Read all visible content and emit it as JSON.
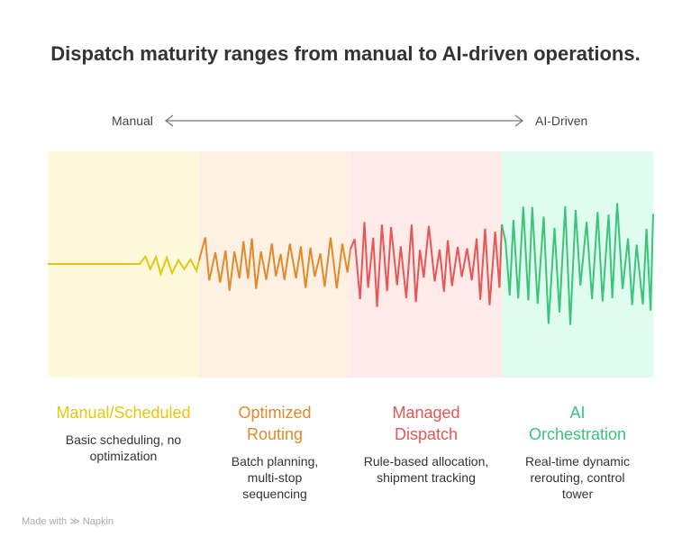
{
  "title": "Dispatch maturity ranges from manual to AI-driven operations.",
  "axis": {
    "left": "Manual",
    "right": "AI-Driven"
  },
  "stages": [
    {
      "title": "Manual/Scheduled",
      "description": "Basic scheduling, no optimization",
      "color": "#e2c80f",
      "bg": "#fef9db"
    },
    {
      "title": "Optimized Routing",
      "description": "Batch planning, multi-stop sequencing",
      "color": "#e08a2c",
      "bg": "#fff0e4"
    },
    {
      "title": "Managed Dispatch",
      "description": "Rule-based allocation, shipment tracking",
      "color": "#e85555",
      "bg": "#ffeaea"
    },
    {
      "title": "AI Orchestration",
      "description": "Real-time dynamic rerouting, control tower",
      "color": "#3cc47c",
      "bg": "#dffcee"
    }
  ],
  "footer": {
    "text": "Made with",
    "brand": "Napkin"
  }
}
